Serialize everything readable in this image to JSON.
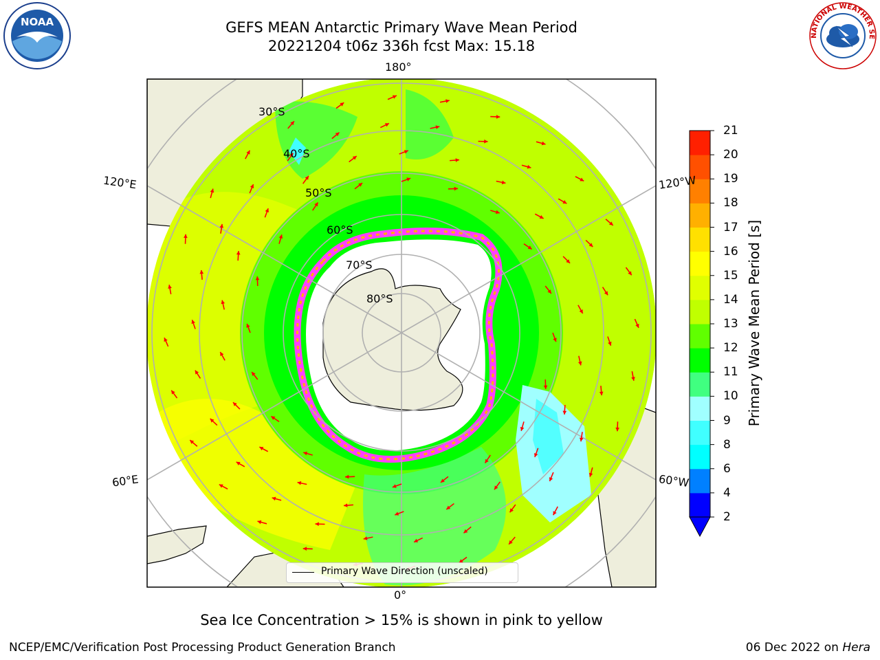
{
  "header": {
    "title_line1": "GEFS MEAN Antarctic Primary Wave Mean Period",
    "title_line2": "20221204 t06z 336h fcst   Max: 15.18"
  },
  "logos": {
    "left": "NOAA",
    "right": "NATIONAL WEATHER SERVICE"
  },
  "map": {
    "legend_text": "Primary Wave Direction (unscaled)",
    "longitude_labels": {
      "top": "180°",
      "bottom": "0°",
      "left_upper": "120°E",
      "left_lower": "60°E",
      "right_upper": "120°W",
      "right_lower": "60°W"
    },
    "latitude_labels": [
      "30°S",
      "40°S",
      "50°S",
      "60°S",
      "70°S",
      "80°S"
    ],
    "colors": {
      "land": "#eeeedc",
      "ice": "#ffffff",
      "arrow": "#ff0000",
      "grid": "#b0b0b0"
    }
  },
  "colorbar": {
    "label": "Primary Wave Mean Period [s]",
    "ticks": [
      "2",
      "4",
      "6",
      "8",
      "9",
      "10",
      "11",
      "12",
      "13",
      "14",
      "15",
      "16",
      "17",
      "18",
      "19",
      "20",
      "21"
    ],
    "colors": [
      "#0000ff",
      "#0080ff",
      "#00ffff",
      "#40ffff",
      "#a0ffff",
      "#40ff80",
      "#00ff00",
      "#60ff00",
      "#c0ff00",
      "#e0ff00",
      "#ffff00",
      "#ffe000",
      "#ffb000",
      "#ff8000",
      "#ff5000",
      "#ff2000"
    ]
  },
  "caption": "Sea Ice Concentration > 15% is shown in pink to yellow",
  "footer": {
    "left": "NCEP/EMC/Verification Post Processing Product Generation Branch",
    "right_prefix": "06 Dec 2022 on ",
    "right_host": "Hera"
  }
}
